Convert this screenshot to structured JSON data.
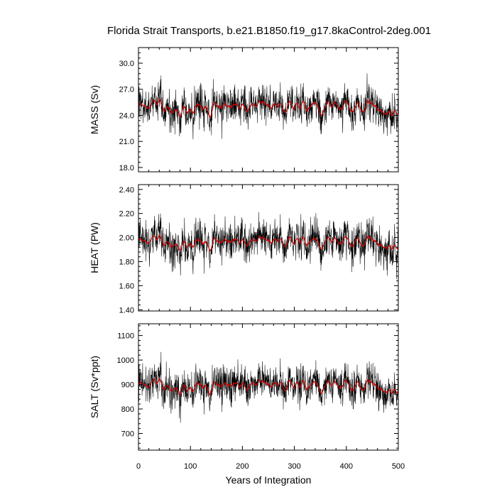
{
  "title": "Florida Strait Transports, b.e21.B1850.f19_g17.8kaControl-2deg.001",
  "xlabel": "Years of Integration",
  "colors": {
    "raw": "#000000",
    "smoothed": "#cc0000"
  },
  "chart_data": [
    {
      "type": "line",
      "panel": "mass",
      "ylabel": "MASS (Sv)",
      "xlim": [
        0,
        500
      ],
      "ylim": [
        17.5,
        31.8
      ],
      "yticks": [
        "18.0",
        "21.0",
        "24.0",
        "27.0",
        "30.0"
      ],
      "xticks": [
        "0",
        "100",
        "200",
        "300",
        "400",
        "500"
      ],
      "series": [
        {
          "style": "raw monthly",
          "x_range": [
            0,
            500
          ],
          "mean": 24.9,
          "min": 17.8,
          "max": 31.1
        },
        {
          "style": "running mean",
          "x_range": [
            0,
            500
          ],
          "mean": 24.9,
          "min": 23.5,
          "max": 26.5
        }
      ]
    },
    {
      "type": "line",
      "panel": "heat",
      "ylabel": "HEAT (PW)",
      "xlim": [
        0,
        500
      ],
      "ylim": [
        1.39,
        2.44
      ],
      "yticks": [
        "1.40",
        "1.60",
        "1.80",
        "2.00",
        "2.20",
        "2.40"
      ],
      "xticks": [
        "0",
        "100",
        "200",
        "300",
        "400",
        "500"
      ],
      "series": [
        {
          "style": "raw monthly",
          "x_range": [
            0,
            500
          ],
          "mean": 1.96,
          "min": 1.42,
          "max": 2.38
        },
        {
          "style": "running mean",
          "x_range": [
            0,
            500
          ],
          "mean": 1.96,
          "min": 1.86,
          "max": 2.06
        }
      ]
    },
    {
      "type": "line",
      "panel": "salt",
      "ylabel": "SALT (Sv*ppt)",
      "xlim": [
        0,
        500
      ],
      "ylim": [
        632,
        1148
      ],
      "yticks": [
        "700",
        "800",
        "900",
        "1000",
        "1100"
      ],
      "xticks": [
        "0",
        "100",
        "200",
        "300",
        "400",
        "500"
      ],
      "series": [
        {
          "style": "raw monthly",
          "x_range": [
            0,
            500
          ],
          "mean": 893,
          "min": 645,
          "max": 1135
        },
        {
          "style": "running mean",
          "x_range": [
            0,
            500
          ],
          "mean": 893,
          "min": 845,
          "max": 945
        }
      ]
    }
  ]
}
